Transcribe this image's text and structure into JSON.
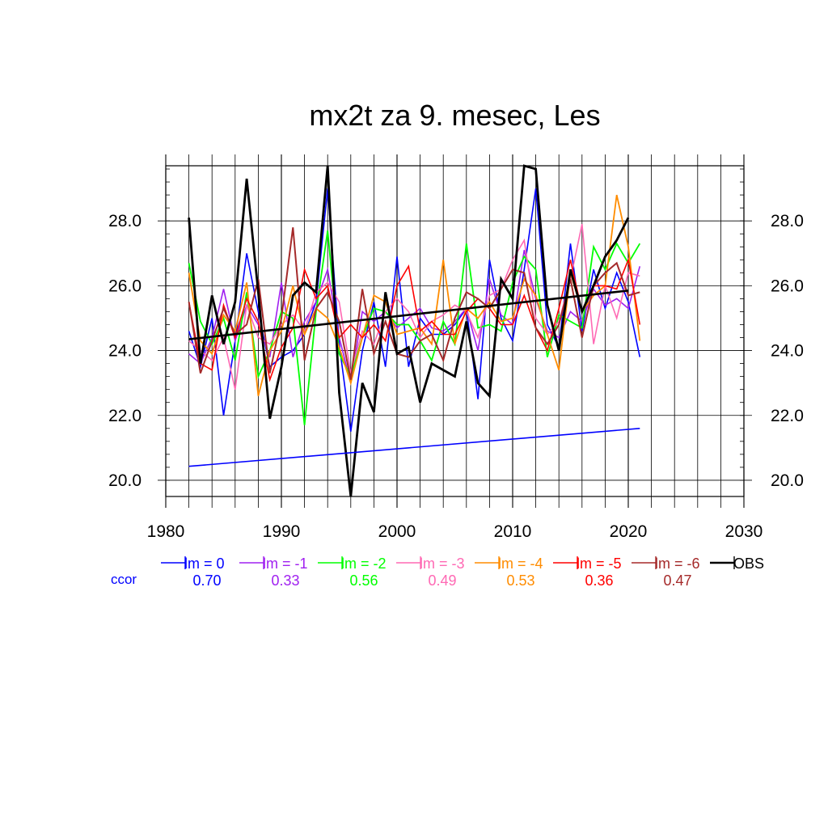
{
  "chart_data": {
    "type": "line",
    "title": "mx2t za 9. mesec, Les",
    "xlabel": "",
    "ylabel": "",
    "xlim": [
      1980,
      2030
    ],
    "ylim": [
      19.5,
      29.7
    ],
    "xticks": [
      "1980",
      "1990",
      "2000",
      "2010",
      "2020",
      "2030"
    ],
    "yticks": [
      "20.0",
      "22.0",
      "24.0",
      "26.0",
      "28.0"
    ],
    "grid": true,
    "legend_position": "bottom",
    "ccor_label": "ccor",
    "x": [
      1982,
      1983,
      1984,
      1985,
      1986,
      1987,
      1988,
      1989,
      1990,
      1991,
      1992,
      1993,
      1994,
      1995,
      1996,
      1997,
      1998,
      1999,
      2000,
      2001,
      2002,
      2003,
      2004,
      2005,
      2006,
      2007,
      2008,
      2009,
      2010,
      2011,
      2012,
      2013,
      2014,
      2015,
      2016,
      2017,
      2018,
      2019,
      2020,
      2021
    ],
    "series": [
      {
        "name": "lm = 0",
        "ccor": "0.70",
        "color": "#0000ff",
        "width": 1.6,
        "values": [
          24.6,
          23.5,
          25.0,
          22.0,
          24.3,
          27.0,
          25.2,
          23.5,
          23.8,
          24.0,
          24.5,
          25.5,
          29.0,
          24.2,
          21.5,
          24.0,
          25.5,
          23.5,
          26.9,
          23.5,
          25.0,
          24.5,
          24.5,
          24.8,
          25.3,
          22.5,
          26.8,
          25.0,
          24.3,
          26.5,
          29.0,
          24.8,
          24.1,
          27.3,
          24.6,
          26.5,
          25.3,
          26.4,
          25.5,
          23.8
        ]
      },
      {
        "name": "lm = -1",
        "ccor": "0.33",
        "color": "#a020f0",
        "width": 1.6,
        "values": [
          23.9,
          23.6,
          24.4,
          25.9,
          24.3,
          25.4,
          24.8,
          23.8,
          26.1,
          23.8,
          24.9,
          25.5,
          26.5,
          24.4,
          23.0,
          25.2,
          24.9,
          25.2,
          24.7,
          25.0,
          25.3,
          24.7,
          24.6,
          24.9,
          25.3,
          24.0,
          26.2,
          25.1,
          24.8,
          27.1,
          25.6,
          24.6,
          24.4,
          25.2,
          24.9,
          25.9,
          25.4,
          25.6,
          25.3,
          26.6
        ]
      },
      {
        "name": "lm = -2",
        "ccor": "0.56",
        "color": "#00ff00",
        "width": 1.8,
        "values": [
          26.7,
          24.9,
          24.2,
          25.0,
          23.7,
          25.8,
          23.2,
          24.0,
          25.2,
          25.0,
          21.7,
          25.2,
          27.7,
          23.9,
          23.2,
          24.4,
          25.3,
          25.2,
          24.8,
          24.8,
          24.3,
          23.7,
          24.9,
          24.2,
          27.3,
          24.7,
          24.8,
          24.6,
          26.1,
          26.9,
          26.5,
          23.8,
          25.1,
          24.9,
          24.7,
          27.2,
          26.5,
          27.3,
          26.7,
          27.3
        ]
      },
      {
        "name": "lm = -3",
        "ccor": "0.49",
        "color": "#ff69b4",
        "width": 1.6,
        "values": [
          24.3,
          24.0,
          23.7,
          24.4,
          22.8,
          25.4,
          24.4,
          24.2,
          24.8,
          25.1,
          24.6,
          25.8,
          26.1,
          25.5,
          23.3,
          24.6,
          24.2,
          25.2,
          25.6,
          25.2,
          24.4,
          24.9,
          25.1,
          25.4,
          25.2,
          24.4,
          25.7,
          25.9,
          26.8,
          27.4,
          25.0,
          24.5,
          24.9,
          26.2,
          27.9,
          24.2,
          26.0,
          25.0,
          26.4,
          26.3
        ]
      },
      {
        "name": "lm = -4",
        "ccor": "0.53",
        "color": "#ff8c00",
        "width": 1.8,
        "values": [
          26.4,
          24.3,
          23.9,
          25.1,
          24.6,
          26.1,
          22.6,
          24.0,
          24.6,
          26.0,
          24.5,
          25.3,
          25.0,
          24.1,
          23.0,
          24.4,
          25.7,
          25.5,
          24.5,
          24.6,
          24.7,
          24.2,
          26.8,
          24.2,
          25.3,
          25.0,
          25.5,
          24.9,
          25.0,
          26.2,
          25.7,
          24.5,
          23.4,
          26.4,
          25.2,
          25.7,
          26.0,
          28.8,
          27.2,
          24.3
        ]
      },
      {
        "name": "lm = -5",
        "ccor": "0.36",
        "color": "#ff0000",
        "width": 1.6,
        "values": [
          25.5,
          23.6,
          23.4,
          25.4,
          24.4,
          25.6,
          24.9,
          23.1,
          24.1,
          24.7,
          26.5,
          25.6,
          26.0,
          24.4,
          24.8,
          24.4,
          24.8,
          24.3,
          26.0,
          26.6,
          24.6,
          24.9,
          24.5,
          24.5,
          25.2,
          25.6,
          25.3,
          24.8,
          24.8,
          25.7,
          24.7,
          24.0,
          25.3,
          26.8,
          25.2,
          26.0,
          26.0,
          25.9,
          26.8,
          24.8
        ]
      },
      {
        "name": "lm = -6",
        "ccor": "0.47",
        "color": "#a52a2a",
        "width": 2.0,
        "values": [
          25.5,
          23.3,
          24.3,
          25.3,
          24.5,
          24.8,
          26.2,
          23.3,
          25.0,
          27.8,
          23.7,
          25.3,
          25.8,
          24.9,
          23.1,
          25.9,
          23.9,
          24.9,
          23.9,
          23.8,
          24.3,
          24.5,
          23.7,
          25.0,
          25.8,
          25.6,
          25.3,
          25.9,
          26.5,
          26.4,
          24.7,
          24.2,
          24.8,
          26.2,
          24.4,
          26.0,
          26.4,
          26.7,
          25.7,
          25.8
        ]
      },
      {
        "name": "OBS",
        "color": "#000000",
        "width": 2.8,
        "values": [
          28.1,
          23.6,
          25.7,
          24.2,
          25.5,
          29.3,
          25.8,
          21.9,
          23.5,
          25.7,
          26.1,
          25.8,
          29.7,
          22.7,
          19.5,
          23.0,
          22.1,
          25.8,
          23.9,
          24.1,
          22.4,
          23.6,
          23.4,
          23.2,
          24.9,
          23.0,
          22.6,
          26.2,
          25.6,
          29.7,
          29.6,
          25.4,
          24.0,
          26.5,
          25.2,
          26.0,
          26.9,
          27.4,
          28.1,
          null
        ]
      }
    ],
    "trend_lines": [
      {
        "color": "#000000",
        "width": 2.6,
        "x": [
          1982,
          2020
        ],
        "y": [
          24.35,
          25.85
        ]
      },
      {
        "color": "#0000ff",
        "width": 1.6,
        "x": [
          1982,
          2021
        ],
        "y": [
          20.43,
          21.6
        ]
      }
    ]
  }
}
